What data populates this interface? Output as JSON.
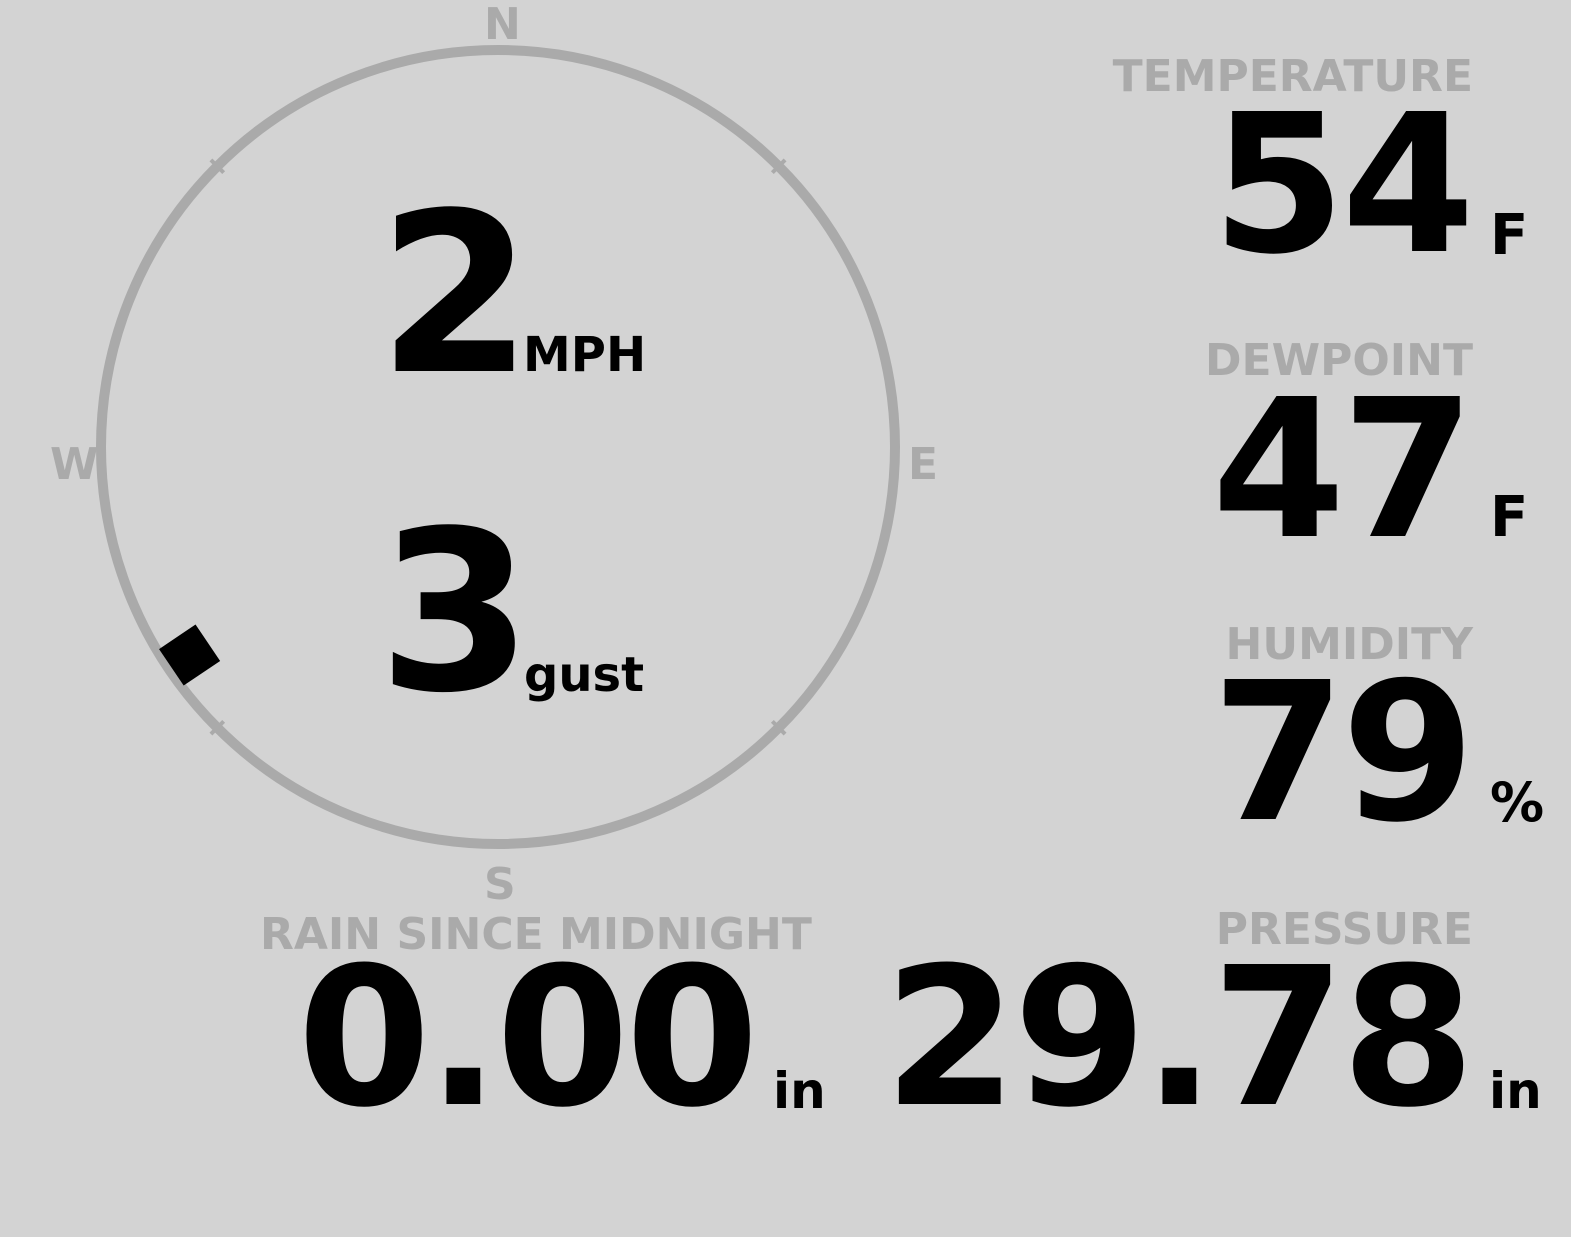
{
  "colors": {
    "background": "#d3d3d3",
    "label": "#aaaaaa",
    "value": "#000000",
    "ring": "#aaaaaa"
  },
  "wind": {
    "compass": {
      "n": "N",
      "e": "E",
      "s": "S",
      "w": "W"
    },
    "direction_degrees": 236,
    "speed": "2",
    "speed_unit": "MPH",
    "gust": "3",
    "gust_unit": "gust"
  },
  "temperature": {
    "label": "TEMPERATURE",
    "value": "54",
    "unit": "F"
  },
  "dewpoint": {
    "label": "DEWPOINT",
    "value": "47",
    "unit": "F"
  },
  "humidity": {
    "label": "HUMIDITY",
    "value": "79",
    "unit": "%"
  },
  "pressure": {
    "label": "PRESSURE",
    "value": "29.78",
    "unit": "in"
  },
  "rain": {
    "label": "RAIN SINCE MIDNIGHT",
    "value": "0.00",
    "unit": "in"
  }
}
